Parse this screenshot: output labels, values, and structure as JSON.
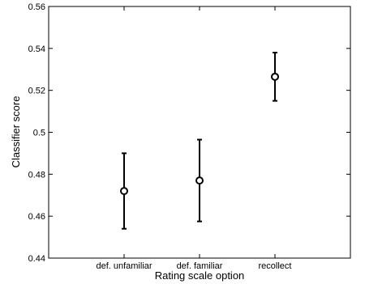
{
  "chart_data": {
    "type": "scatter",
    "title": "",
    "xlabel": "Rating scale option",
    "ylabel": "Classifier score",
    "categories": [
      "def. unfamiliar",
      "def. familiar",
      "recollect"
    ],
    "series": [
      {
        "values": [
          0.472,
          0.477,
          0.5265
        ],
        "error_low": [
          0.454,
          0.4575,
          0.515
        ],
        "error_high": [
          0.49,
          0.4965,
          0.538
        ]
      }
    ],
    "ylim": [
      0.44,
      0.56
    ],
    "yticks": [
      0.44,
      0.46,
      0.48,
      0.5,
      0.52,
      0.54,
      0.56
    ],
    "ytick_labels": [
      "0.44",
      "0.46",
      "0.48",
      "0.5",
      "0.52",
      "0.54",
      "0.56"
    ],
    "grid": false,
    "marker": "open-circle",
    "color": "#000000"
  }
}
